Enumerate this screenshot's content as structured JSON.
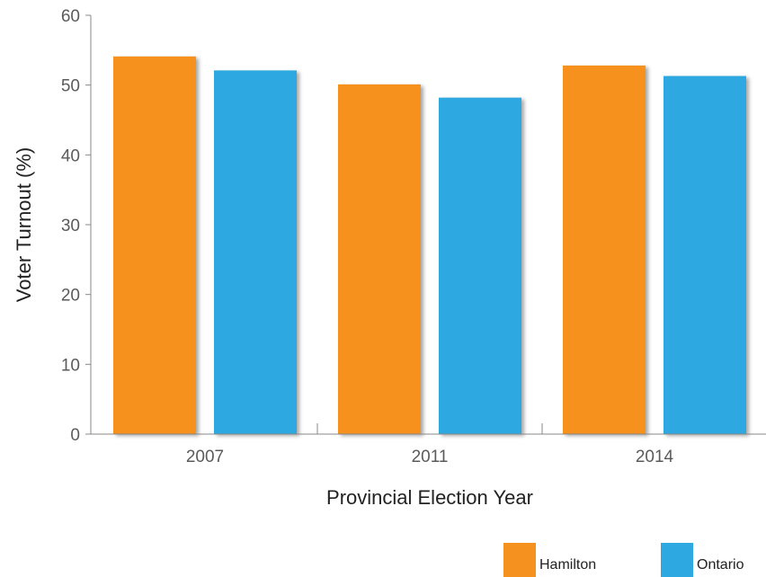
{
  "chart_data": {
    "type": "bar",
    "categories": [
      "2007",
      "2011",
      "2014"
    ],
    "series": [
      {
        "name": "Hamilton",
        "color": "#f5911e",
        "values": [
          54.1,
          50.1,
          52.8
        ]
      },
      {
        "name": "Ontario",
        "color": "#2ea8e0",
        "values": [
          52.1,
          48.2,
          51.3
        ]
      }
    ],
    "xlabel": "Provincial Election Year",
    "ylabel": "Voter Turnout (%)",
    "ylim": [
      0,
      60
    ],
    "yticks": [
      "0",
      "10",
      "20",
      "30",
      "40",
      "50",
      "60"
    ],
    "grid": false,
    "legend_position": "bottom-right"
  }
}
